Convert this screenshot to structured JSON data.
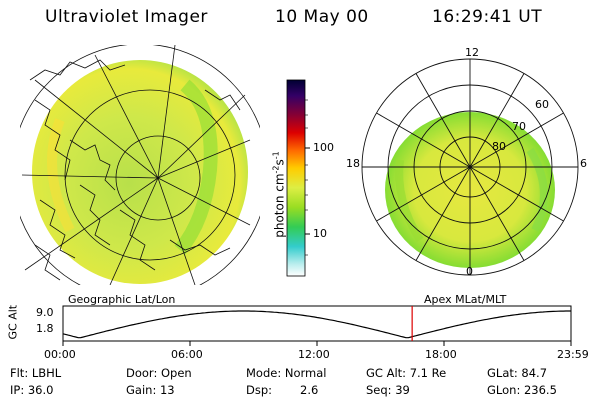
{
  "header": {
    "instrument": "Ultraviolet Imager",
    "date": "10 May 00",
    "time": "16:29:41 UT"
  },
  "panels": {
    "left_label": "Geographic Lat/Lon",
    "right_label": "Apex MLat/MLT"
  },
  "colorbar": {
    "label": "photon cm",
    "label_sup1": "-2",
    "label_mid": "s",
    "label_sup2": "-1",
    "tick_100": "100",
    "tick_10": "10",
    "scale": "log",
    "colors": [
      "#000033",
      "#330066",
      "#660033",
      "#cc0000",
      "#ff6600",
      "#ffcc00",
      "#ccee44",
      "#88dd22",
      "#33cc66",
      "#33cccc",
      "#aaeeee",
      "#ffffff"
    ]
  },
  "polar_labels": {
    "mlt_12": "12",
    "mlt_18": "18",
    "mlt_6": "6",
    "mlt_0": "0",
    "lat_60": "60",
    "lat_70": "70",
    "lat_80": "80"
  },
  "orbit": {
    "axis_label": "GC Alt",
    "y_top": "9.0",
    "y_bottom": "1.8",
    "ticks": [
      "00:00",
      "06:00",
      "12:00",
      "18:00",
      "23:59"
    ],
    "marker_time": "16:29",
    "marker_color": "#dd0000"
  },
  "info": {
    "flt": "Flt: LBHL",
    "ip": "IP: 36.0",
    "door": "Door: Open",
    "gain": "Gain: 13",
    "mode": "Mode: Normal",
    "dsp_label": "Dsp:",
    "dsp_value": "2.6",
    "gc_alt": "GC Alt: 7.1 Re",
    "seq": "Seq: 39",
    "glat": "GLat:  84.7",
    "glon": "GLon: 236.5"
  }
}
